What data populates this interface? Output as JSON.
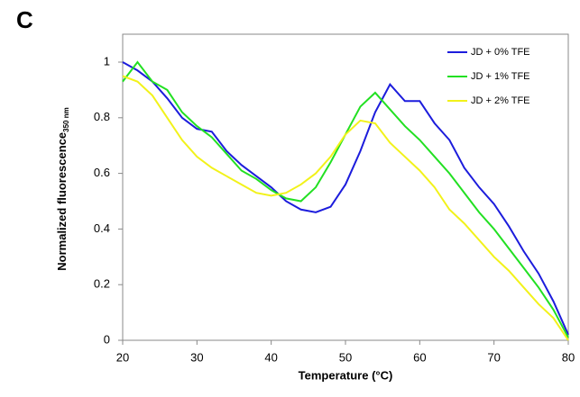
{
  "chart_data": {
    "type": "line",
    "panel_label": "C",
    "x_label": "Temperature (°C)",
    "y_label": "Normalized fluorescence",
    "y_label_subscript": "350 nm",
    "x": [
      20,
      22,
      24,
      26,
      28,
      30,
      32,
      34,
      36,
      38,
      40,
      42,
      44,
      46,
      48,
      50,
      52,
      54,
      56,
      58,
      60,
      62,
      64,
      66,
      68,
      70,
      72,
      74,
      76,
      78,
      80
    ],
    "series": [
      {
        "name": "JD + 0% TFE",
        "color": "#1c1cdc",
        "values": [
          1.0,
          0.97,
          0.93,
          0.87,
          0.8,
          0.76,
          0.75,
          0.68,
          0.63,
          0.59,
          0.55,
          0.5,
          0.47,
          0.46,
          0.48,
          0.56,
          0.68,
          0.82,
          0.92,
          0.86,
          0.86,
          0.78,
          0.72,
          0.62,
          0.55,
          0.49,
          0.41,
          0.32,
          0.24,
          0.14,
          0.02
        ]
      },
      {
        "name": "JD + 1% TFE",
        "color": "#22e022",
        "values": [
          0.93,
          1.0,
          0.93,
          0.9,
          0.82,
          0.77,
          0.73,
          0.67,
          0.61,
          0.58,
          0.54,
          0.51,
          0.5,
          0.55,
          0.64,
          0.74,
          0.84,
          0.89,
          0.83,
          0.77,
          0.72,
          0.66,
          0.6,
          0.53,
          0.46,
          0.4,
          0.33,
          0.26,
          0.19,
          0.11,
          0.01
        ]
      },
      {
        "name": "JD + 2% TFE",
        "color": "#f2f21a",
        "values": [
          0.95,
          0.93,
          0.88,
          0.8,
          0.72,
          0.66,
          0.62,
          0.59,
          0.56,
          0.53,
          0.52,
          0.53,
          0.56,
          0.6,
          0.66,
          0.74,
          0.79,
          0.78,
          0.71,
          0.66,
          0.61,
          0.55,
          0.47,
          0.42,
          0.36,
          0.3,
          0.25,
          0.19,
          0.13,
          0.08,
          0.0
        ]
      }
    ],
    "xlim": [
      20,
      80
    ],
    "xticks": [
      20,
      30,
      40,
      50,
      60,
      70,
      80
    ],
    "ylim": [
      0,
      1
    ],
    "yticks": [
      0,
      0.2,
      0.4,
      0.6,
      0.8,
      1
    ],
    "legend": "top-right"
  }
}
